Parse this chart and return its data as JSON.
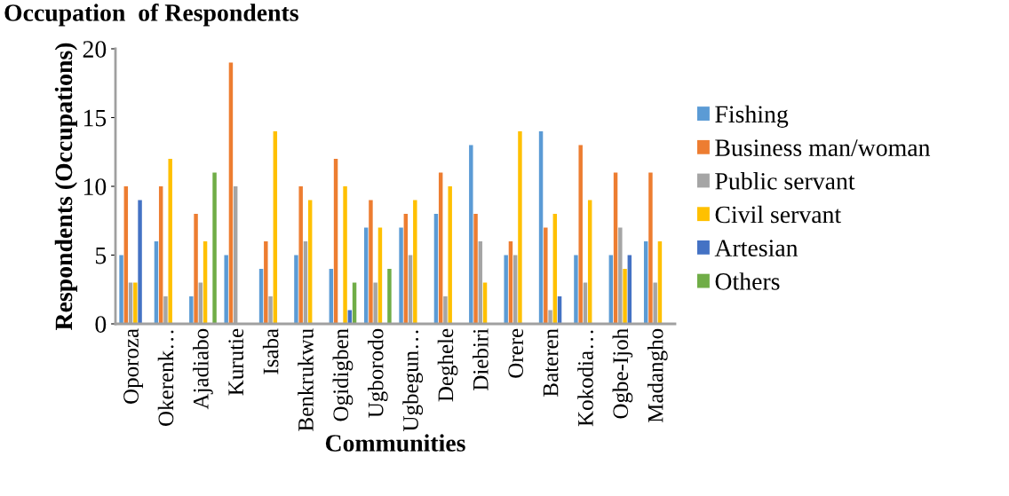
{
  "chart_data": {
    "type": "bar",
    "title": "Occupation  of Respondents",
    "xlabel": "Communities",
    "ylabel": "Respondents (Occupations)",
    "categories": [
      "Oporoza",
      "Okerenk…",
      "Ajadiabo",
      "Kurutie",
      "Isaba",
      "Benkrukwu",
      "Ogidigben",
      "Ugborodo",
      "Ugbegun…",
      "Deghele",
      "Diebiri",
      "Orere",
      "Bateren",
      "Kokodia…",
      "Ogbe-Ijoh",
      "Madangho"
    ],
    "series": [
      {
        "name": "Fishing",
        "color": "#5b9bd5",
        "values": [
          5,
          6,
          2,
          5,
          4,
          5,
          4,
          7,
          7,
          8,
          13,
          5,
          14,
          5,
          5,
          6
        ]
      },
      {
        "name": "Business man/woman",
        "color": "#ed7d31",
        "values": [
          10,
          10,
          8,
          19,
          6,
          10,
          12,
          9,
          8,
          11,
          8,
          6,
          7,
          13,
          11,
          11
        ]
      },
      {
        "name": "Public servant",
        "color": "#a5a5a5",
        "values": [
          3,
          2,
          3,
          10,
          2,
          6,
          0,
          3,
          5,
          2,
          6,
          5,
          1,
          3,
          7,
          3
        ]
      },
      {
        "name": "Civil servant",
        "color": "#ffc000",
        "values": [
          3,
          12,
          6,
          0,
          14,
          9,
          10,
          7,
          9,
          10,
          3,
          14,
          8,
          9,
          4,
          6
        ]
      },
      {
        "name": "Artesian",
        "color": "#4472c4",
        "values": [
          9,
          0,
          0,
          0,
          0,
          0,
          1,
          0,
          0,
          0,
          0,
          0,
          2,
          0,
          5,
          0
        ]
      },
      {
        "name": "Others",
        "color": "#70ad47",
        "values": [
          0,
          0,
          11,
          0,
          0,
          0,
          3,
          4,
          0,
          0,
          0,
          0,
          0,
          0,
          0,
          0
        ]
      }
    ],
    "ylim": [
      0,
      20
    ],
    "yticks": [
      0,
      5,
      10,
      15,
      20
    ],
    "grid": false,
    "legend": "right"
  }
}
